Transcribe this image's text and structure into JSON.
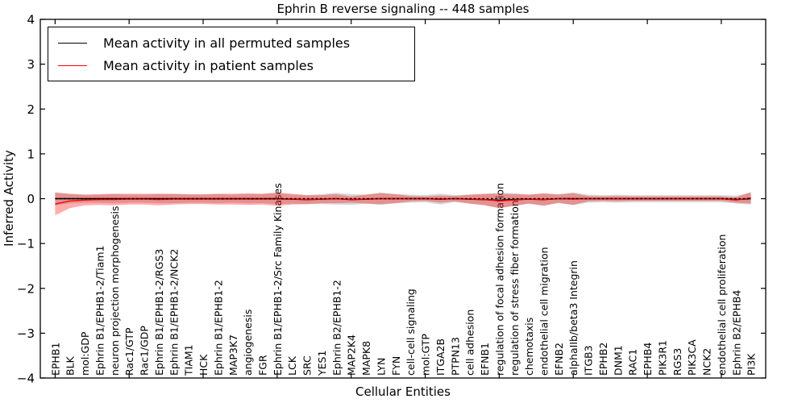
{
  "figure": {
    "background": "#ffffff",
    "accent_red": "#ff0000",
    "line_black": "#000000"
  },
  "chart_data": {
    "type": "line",
    "title": "Ephrin B reverse signaling -- 448 samples",
    "xlabel": "Cellular Entities",
    "ylabel": "Inferred Activity",
    "ylim": [
      -4,
      4
    ],
    "yticks": [
      4,
      3,
      2,
      1,
      0,
      -1,
      -2,
      -3,
      -4
    ],
    "xtick_positions": [
      0,
      5,
      10,
      15,
      20,
      25,
      30,
      35,
      40,
      45
    ],
    "grid": false,
    "legend_position": "upper-left",
    "zero_line": {
      "style": "dashed",
      "color": "#000000",
      "y": 0
    },
    "categories": [
      "EPHB1",
      "BLK",
      "mol:GDP",
      "Ephrin B1/EPHB1-2/Tiam1",
      "neuron projection morphogenesis",
      "Rac1/GTP",
      "Rac1/GDP",
      "Ephrin B1/EPHB1-2/RGS3",
      "Ephrin B1/EPHB1-2/NCK2",
      "TIAM1",
      "HCK",
      "Ephrin B1/EPHB1-2",
      "MAP3K7",
      "angiogenesis",
      "FGR",
      "Ephrin B1/EPHB1-2/Src Family Kinases",
      "LCK",
      "SRC",
      "YES1",
      "Ephrin B2/EPHB1-2",
      "MAP2K4",
      "MAPK8",
      "LYN",
      "FYN",
      "cell-cell signaling",
      "mol:GTP",
      "ITGA2B",
      "PTPN13",
      "cell adhesion",
      "EFNB1",
      "regulation of focal adhesion formation",
      "regulation of stress fiber formation",
      "chemotaxis",
      "endothelial cell migration",
      "EFNB2",
      "alphaIIb/beta3 Integrin",
      "ITGB3",
      "EPHB2",
      "DNM1",
      "RAC1",
      "EPHB4",
      "PIK3R1",
      "RGS3",
      "PIK3CA",
      "NCK2",
      "endothelial cell proliferation",
      "Ephrin B2/EPHB4",
      "PI3K"
    ],
    "series": [
      {
        "name": "Mean activity in all permuted samples",
        "color": "#000000",
        "band_color": "rgba(120,120,120,0.30)",
        "mean": [
          0,
          0,
          0,
          0,
          0,
          0,
          0,
          0,
          0,
          0,
          0,
          0,
          0,
          0,
          0,
          0,
          -0.01,
          -0.02,
          -0.01,
          0,
          -0.02,
          -0.01,
          0,
          0,
          0,
          0,
          -0.01,
          0,
          -0.01,
          -0.02,
          -0.04,
          -0.02,
          -0.01,
          -0.02,
          0,
          0,
          0,
          0,
          0,
          0,
          0,
          0,
          0,
          0,
          0,
          0,
          -0.02,
          0
        ],
        "std": [
          0.15,
          0.1,
          0.09,
          0.09,
          0.1,
          0.09,
          0.09,
          0.1,
          0.1,
          0.09,
          0.09,
          0.1,
          0.09,
          0.1,
          0.1,
          0.12,
          0.1,
          0.1,
          0.11,
          0.13,
          0.12,
          0.1,
          0.14,
          0.1,
          0.09,
          0.08,
          0.12,
          0.08,
          0.1,
          0.12,
          0.17,
          0.14,
          0.1,
          0.13,
          0.1,
          0.14,
          0.09,
          0.08,
          0.09,
          0.08,
          0.08,
          0.08,
          0.08,
          0.08,
          0.08,
          0.08,
          0.09,
          0.13
        ]
      },
      {
        "name": "Mean activity in patient samples",
        "color": "#ff0000",
        "band_color": "rgba(255,0,0,0.32)",
        "mean": [
          -0.12,
          -0.05,
          -0.03,
          -0.02,
          -0.02,
          -0.01,
          -0.01,
          -0.02,
          -0.01,
          -0.01,
          -0.01,
          -0.01,
          -0.01,
          -0.01,
          -0.01,
          -0.01,
          -0.01,
          -0.02,
          -0.01,
          0,
          -0.02,
          -0.01,
          0,
          0,
          0,
          0,
          -0.01,
          0,
          -0.01,
          -0.02,
          -0.05,
          -0.03,
          -0.01,
          -0.02,
          0,
          -0.01,
          0,
          0,
          0,
          0,
          0,
          0,
          0,
          0,
          0,
          0,
          -0.03,
          0.02
        ],
        "std": [
          0.25,
          0.16,
          0.12,
          0.12,
          0.13,
          0.12,
          0.12,
          0.13,
          0.12,
          0.11,
          0.11,
          0.12,
          0.12,
          0.13,
          0.12,
          0.15,
          0.12,
          0.1,
          0.09,
          0.1,
          0.07,
          0.1,
          0.12,
          0.1,
          0.06,
          0.05,
          0.08,
          0.06,
          0.1,
          0.13,
          0.16,
          0.13,
          0.1,
          0.14,
          0.09,
          0.13,
          0.06,
          0.05,
          0.06,
          0.05,
          0.05,
          0.05,
          0.05,
          0.05,
          0.05,
          0.05,
          0.06,
          0.13
        ]
      }
    ]
  }
}
